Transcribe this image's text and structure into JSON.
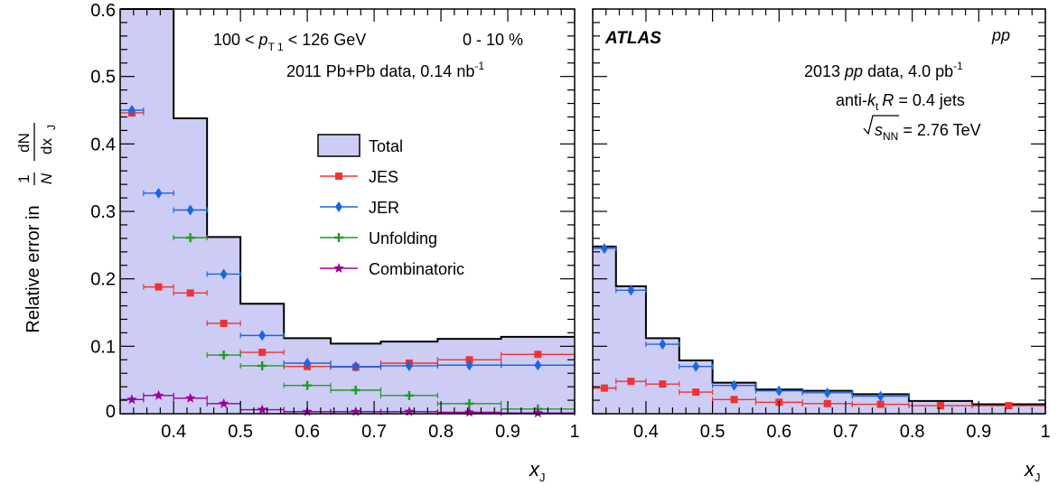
{
  "chart_data": [
    {
      "type": "histogram",
      "panel": "Pb+Pb",
      "xlabel": "x",
      "xlabel_sub": "J",
      "ylabel_prefix": "Relative error in",
      "ylabel_frac_num_left": "1",
      "ylabel_frac_den_left": "N",
      "ylabel_frac_num_right": "dN",
      "ylabel_frac_den_right": "dx",
      "ylabel_frac_den_sub": "J",
      "xlim": [
        0.32,
        1.0
      ],
      "ylim": [
        0,
        0.6
      ],
      "x_ticks": [
        "0.4",
        "0.5",
        "0.6",
        "0.7",
        "0.8",
        "0.9",
        "1"
      ],
      "y_ticks": [
        "0",
        "0.1",
        "0.2",
        "0.3",
        "0.4",
        "0.5",
        "0.6"
      ],
      "bin_edges": [
        0.32,
        0.355,
        0.4,
        0.45,
        0.5,
        0.565,
        0.635,
        0.71,
        0.795,
        0.89,
        1.0
      ],
      "total": [
        0.6,
        0.6,
        0.438,
        0.262,
        0.163,
        0.112,
        0.104,
        0.107,
        0.111,
        0.114
      ],
      "series": [
        {
          "name": "JES",
          "marker": "square",
          "color": "#ee3333",
          "values": [
            0.446,
            0.188,
            0.179,
            0.134,
            0.091,
            0.07,
            0.069,
            0.075,
            0.08,
            0.088
          ]
        },
        {
          "name": "JER",
          "marker": "diamond",
          "color": "#1a66e0",
          "values": [
            0.45,
            0.327,
            0.302,
            0.207,
            0.116,
            0.075,
            0.07,
            0.071,
            0.072,
            0.072
          ]
        },
        {
          "name": "Unfolding",
          "marker": "cross",
          "color": "#229922",
          "values": [
            0.0,
            0.0,
            0.261,
            0.087,
            0.071,
            0.042,
            0.035,
            0.027,
            0.015,
            0.007
          ]
        },
        {
          "name": "Combinatoric",
          "marker": "star",
          "color": "#990099",
          "values": [
            0.021,
            0.027,
            0.023,
            0.015,
            0.006,
            0.003,
            0.003,
            0.003,
            0.002,
            0.001
          ]
        }
      ],
      "legend": [
        {
          "label": "Total",
          "kind": "box"
        },
        {
          "label": "JES",
          "kind": "marker",
          "series": 0
        },
        {
          "label": "JER",
          "kind": "marker",
          "series": 1
        },
        {
          "label": "Unfolding",
          "kind": "marker",
          "series": 2
        },
        {
          "label": "Combinatoric",
          "kind": "marker",
          "series": 3
        }
      ],
      "annotations": {
        "pt_range_pre": "100 < ",
        "pt_p": "p",
        "pt_sub": "T 1",
        "pt_range_post": " <  126 GeV",
        "centrality": "0 - 10 %",
        "dataset_pre": "2011 Pb+Pb data, 0.14 nb",
        "dataset_sup": "-1"
      }
    },
    {
      "type": "histogram",
      "panel": "pp",
      "xlabel": "x",
      "xlabel_sub": "J",
      "xlim": [
        0.32,
        1.0
      ],
      "ylim": [
        0,
        0.6
      ],
      "x_ticks": [
        "0.4",
        "0.5",
        "0.6",
        "0.7",
        "0.8",
        "0.9",
        "1"
      ],
      "bin_edges": [
        0.32,
        0.355,
        0.4,
        0.45,
        0.5,
        0.565,
        0.635,
        0.71,
        0.795,
        0.89,
        1.0
      ],
      "total": [
        0.248,
        0.189,
        0.112,
        0.079,
        0.046,
        0.036,
        0.034,
        0.029,
        0.019,
        0.014
      ],
      "series": [
        {
          "name": "JES",
          "marker": "square",
          "color": "#ee3333",
          "values": [
            0.038,
            0.048,
            0.044,
            0.032,
            0.021,
            0.017,
            0.015,
            0.014,
            0.012,
            0.012
          ]
        },
        {
          "name": "JER",
          "marker": "diamond",
          "color": "#1a66e0",
          "values": [
            0.245,
            0.183,
            0.103,
            0.07,
            0.042,
            0.034,
            0.031,
            0.026,
            0.0,
            0.0
          ]
        }
      ],
      "annotations": {
        "atlas": "ATLAS",
        "system": "pp",
        "dataset_pre": "2013 ",
        "dataset_pp": "pp",
        "dataset_post": " data, 4.0 pb",
        "dataset_sup": "-1",
        "algo_pre": "anti-",
        "algo_k": "k",
        "algo_sub": "t",
        "algo_R": "R",
        "algo_post": " = 0.4 jets",
        "energy_s": "s",
        "energy_sub": "NN",
        "energy_post": " = 2.76 TeV"
      }
    }
  ]
}
